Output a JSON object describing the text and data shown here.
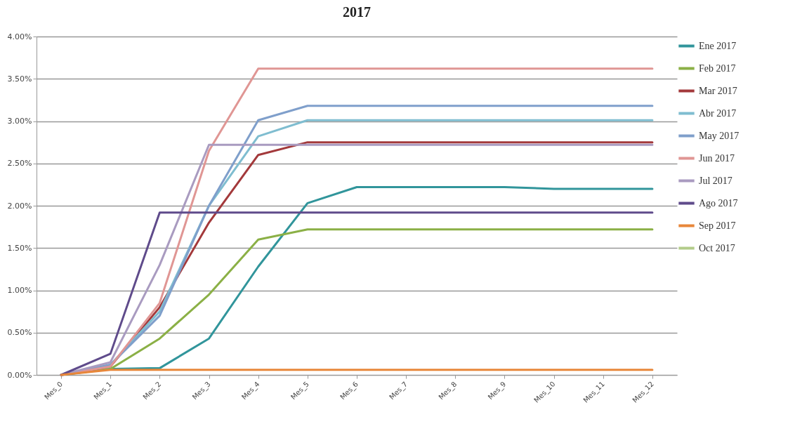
{
  "chart_data": {
    "type": "line",
    "title": "2017",
    "categories": [
      "Mes_0",
      "Mes_1",
      "Mes_2",
      "Mes_3",
      "Mes_4",
      "Mes_5",
      "Mes_6",
      "Mes_7",
      "Mes_8",
      "Mes_9",
      "Mes_10",
      "Mes_11",
      "Mes_12"
    ],
    "series": [
      {
        "name": "Ene 2017",
        "color": "#31959b",
        "values": [
          0,
          0.07,
          0.08,
          0.43,
          1.28,
          2.03,
          2.22,
          2.22,
          2.22,
          2.22,
          2.2,
          2.2,
          2.2
        ]
      },
      {
        "name": "Feb 2017",
        "color": "#8bb046",
        "values": [
          0,
          0.07,
          0.43,
          0.95,
          1.6,
          1.72,
          1.72,
          1.72,
          1.72,
          1.72,
          1.72,
          1.72,
          1.72
        ]
      },
      {
        "name": "Mar 2017",
        "color": "#a3393b",
        "values": [
          0,
          0.1,
          0.8,
          1.8,
          2.6,
          2.75,
          2.75,
          2.75,
          2.75,
          2.75,
          2.75,
          2.75,
          2.75
        ]
      },
      {
        "name": "Abr 2017",
        "color": "#7fbdd0",
        "values": [
          0,
          0.12,
          0.75,
          2.0,
          2.82,
          3.01,
          3.01,
          3.01,
          3.01,
          3.01,
          3.01,
          3.01,
          3.01
        ]
      },
      {
        "name": "May 2017",
        "color": "#7f9fcb",
        "values": [
          0,
          0.12,
          0.7,
          2.0,
          3.01,
          3.18,
          3.18,
          3.18,
          3.18,
          3.18,
          3.18,
          3.18,
          3.18
        ]
      },
      {
        "name": "Jun 2017",
        "color": "#e09694",
        "values": [
          0,
          0.1,
          0.85,
          2.65,
          3.62,
          3.62,
          3.62,
          3.62,
          3.62,
          3.62,
          3.62,
          3.62,
          3.62
        ]
      },
      {
        "name": "Jul 2017",
        "color": "#a99bc0",
        "values": [
          0,
          0.15,
          1.3,
          2.72,
          2.72,
          2.72,
          2.72,
          2.72,
          2.72,
          2.72,
          2.72,
          2.72,
          2.72
        ]
      },
      {
        "name": "Ago 2017",
        "color": "#5f4b8b",
        "values": [
          0,
          0.25,
          1.92,
          1.92,
          1.92,
          1.92,
          1.92,
          1.92,
          1.92,
          1.92,
          1.92,
          1.92,
          1.92
        ]
      },
      {
        "name": "Sep 2017",
        "color": "#e8873a",
        "values": [
          0,
          0.06,
          0.06,
          0.06,
          0.06,
          0.06,
          0.06,
          0.06,
          0.06,
          0.06,
          0.06,
          0.06,
          0.06
        ]
      },
      {
        "name": "Oct 2017",
        "color": "#b3cc8a",
        "values": [
          null,
          null,
          null,
          null,
          null,
          null,
          null,
          null,
          null,
          null,
          null,
          null,
          null
        ]
      }
    ],
    "ylim": [
      0,
      4
    ],
    "yticks": [
      {
        "value": 0,
        "label": "0.00%"
      },
      {
        "value": 0.5,
        "label": "0.50%"
      },
      {
        "value": 1,
        "label": "1.00%"
      },
      {
        "value": 1.5,
        "label": "1.50%"
      },
      {
        "value": 2,
        "label": "2.00%"
      },
      {
        "value": 2.5,
        "label": "2.50%"
      },
      {
        "value": 3,
        "label": "3.00%"
      },
      {
        "value": 3.5,
        "label": "3.50%"
      },
      {
        "value": 4,
        "label": "4.00%"
      }
    ],
    "grid": "y",
    "legend": "right",
    "line_style": "solid"
  }
}
